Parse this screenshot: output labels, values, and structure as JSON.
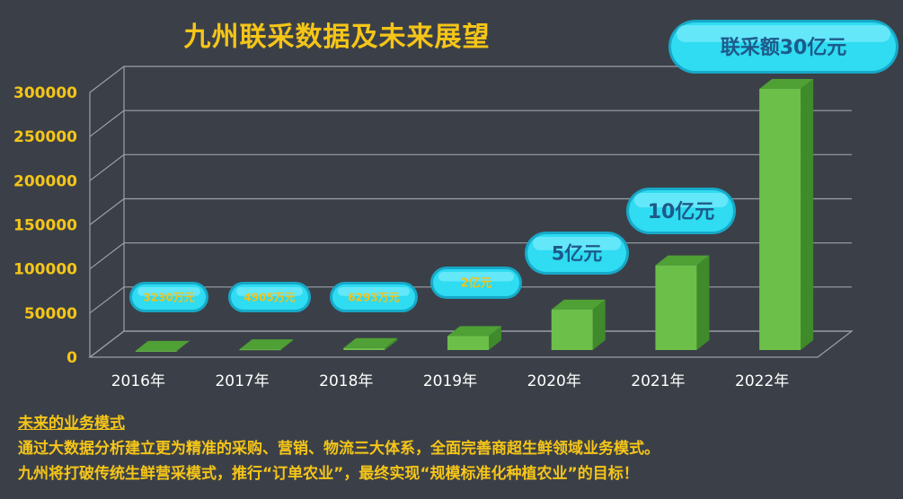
{
  "chart_data": {
    "type": "bar",
    "title": "九州联采数据及未来展望",
    "categories": [
      "2016年",
      "2017年",
      "2018年",
      "2019年",
      "2020年",
      "2021年",
      "2022年"
    ],
    "values": [
      3230,
      4905,
      6293,
      20000,
      50000,
      100000,
      300000
    ],
    "ylim": [
      0,
      300000
    ],
    "yticks": [
      0,
      50000,
      100000,
      150000,
      200000,
      250000,
      300000
    ],
    "ytick_labels": [
      "0",
      "50000",
      "100000",
      "150000",
      "200000",
      "250000",
      "300000"
    ],
    "grid": true,
    "bar_color": "#6cc04a",
    "annotations": [
      "3230万元",
      "4905万元",
      "6293万元",
      "2亿元",
      "5亿元",
      "10亿元",
      "联采额30亿元"
    ]
  },
  "notes": {
    "heading": "未来的业务模式",
    "line1": "通过大数据分析建立更为精准的采购、营销、物流三大体系，全面完善商超生鲜领域业务模式。",
    "line2": "九州将打破传统生鲜营采模式，推行“订单农业”，最终实现“规模标准化种植农业”的目标！"
  },
  "colors": {
    "background": "#3b4048",
    "accent": "#f5c518",
    "callout": "#2ad8f0",
    "bar": "#6cc04a"
  }
}
